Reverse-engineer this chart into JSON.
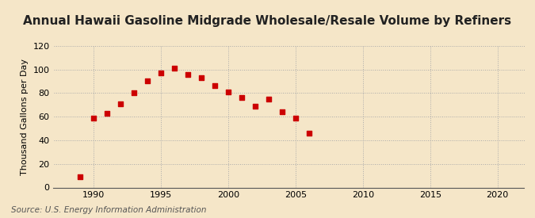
{
  "title": "Annual Hawaii Gasoline Midgrade Wholesale/Resale Volume by Refiners",
  "ylabel": "Thousand Gallons per Day",
  "source": "Source: U.S. Energy Information Administration",
  "background_color": "#f5e6c8",
  "marker_color": "#cc0000",
  "years": [
    1989,
    1990,
    1991,
    1992,
    1993,
    1994,
    1995,
    1996,
    1997,
    1998,
    1999,
    2000,
    2001,
    2002,
    2003,
    2004,
    2005,
    2006
  ],
  "values": [
    9,
    59,
    63,
    71,
    80,
    90,
    97,
    101,
    96,
    93,
    86,
    81,
    76,
    69,
    75,
    64,
    59,
    46
  ],
  "xlim": [
    1987,
    2022
  ],
  "ylim": [
    0,
    120
  ],
  "xticks": [
    1990,
    1995,
    2000,
    2005,
    2010,
    2015,
    2020
  ],
  "yticks": [
    0,
    20,
    40,
    60,
    80,
    100,
    120
  ],
  "title_fontsize": 11,
  "label_fontsize": 8,
  "tick_fontsize": 8,
  "source_fontsize": 7.5
}
